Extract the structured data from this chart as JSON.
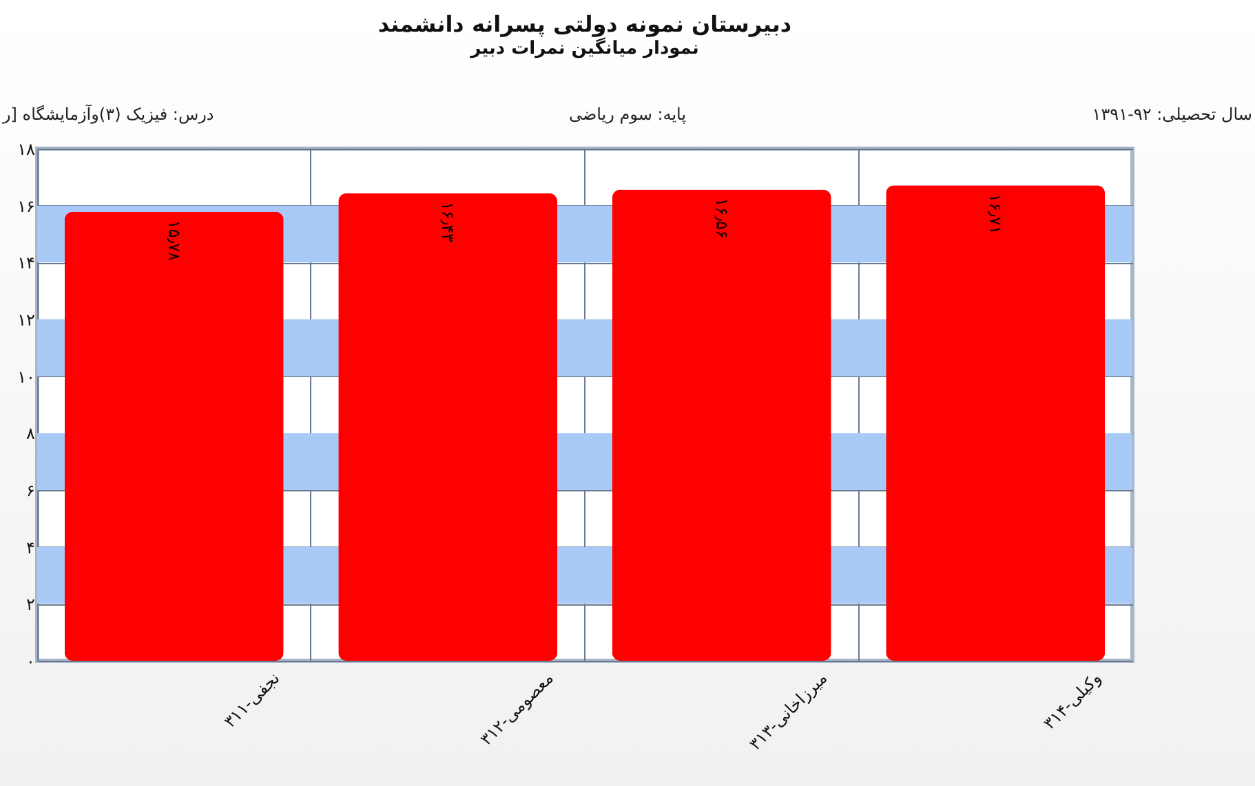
{
  "chart_data": {
    "type": "bar",
    "title": "دبیرستان  نمونه دولتی پسرانه دانشمند",
    "subtitle": "نمودار میانگین نمرات دبیر",
    "annotations": [
      "درس: فیزیک (۳)وآزمایشگاه [ر",
      "پایه: سوم ریاضی",
      "سال تحصیلی: ۹۲-۱۳۹۱"
    ],
    "categories": [
      "نجفی-۳۱۱",
      "معصومی-۳۱۲",
      "میرزاخانی-۳۱۳",
      "وکیلی-۳۱۴"
    ],
    "series": [
      {
        "color": "#ff0000",
        "values": [
          15.78,
          16.43,
          16.56,
          16.71
        ]
      }
    ],
    "value_labels": [
      "۱۵٫۷۸",
      "۱۶٫۴۳",
      "۱۶٫۵۶",
      "۱۶٫۷۱"
    ],
    "ylim": [
      0,
      18
    ],
    "yticks": [
      {
        "value": 0,
        "label": "۰"
      },
      {
        "value": 2,
        "label": "۲"
      },
      {
        "value": 4,
        "label": "۴"
      },
      {
        "value": 6,
        "label": "۶"
      },
      {
        "value": 8,
        "label": "۸"
      },
      {
        "value": 10,
        "label": "۱۰"
      },
      {
        "value": 12,
        "label": "۱۲"
      },
      {
        "value": 14,
        "label": "۱۴"
      },
      {
        "value": 16,
        "label": "۱۶"
      },
      {
        "value": 18,
        "label": "۱۸"
      }
    ],
    "bands": [
      {
        "axis": "y",
        "from": 2,
        "to": 4,
        "color": "#a9c9f7"
      },
      {
        "axis": "y",
        "from": 6,
        "to": 8,
        "color": "#a9c9f7"
      },
      {
        "axis": "y",
        "from": 10,
        "to": 12,
        "color": "#a9c9f7"
      },
      {
        "axis": "y",
        "from": 14,
        "to": 16,
        "color": "#a9c9f7"
      }
    ],
    "grid": true
  }
}
